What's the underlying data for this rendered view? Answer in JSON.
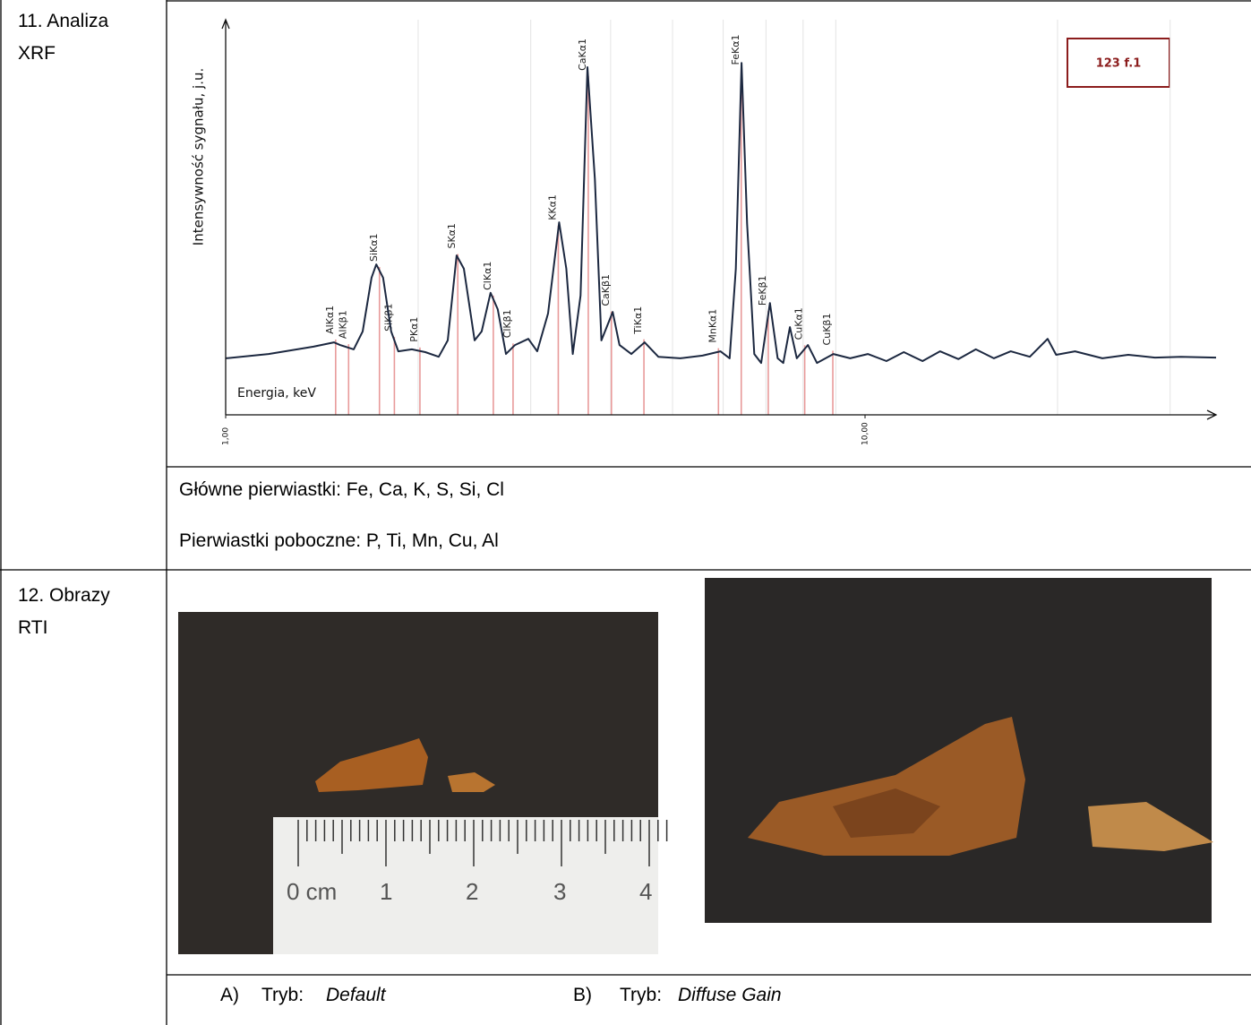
{
  "section_11": {
    "label": "11. Analiza XRF",
    "chart_data": {
      "type": "line",
      "annotation": "123 f.1",
      "x_label": "Energia, keV",
      "y_label": "Intensywność sygnału, j.u.",
      "log_x": true,
      "xlim": [
        1,
        35.4
      ],
      "ylim": [
        0,
        100
      ],
      "xticks": [
        {
          "value": 1,
          "label": "1,00"
        },
        {
          "value": 10,
          "label": "10,00"
        }
      ],
      "xgrid": [
        2,
        3,
        4,
        5,
        6,
        7,
        8,
        9,
        20,
        30
      ],
      "series": [
        {
          "color": "#1c2840",
          "x": [
            1.0,
            1.167,
            1.372,
            1.477,
            1.51,
            1.586,
            1.638,
            1.691,
            1.72,
            1.763,
            1.815,
            1.862,
            1.955,
            2.052,
            2.154,
            2.225,
            2.297,
            2.358,
            2.451,
            2.514,
            2.596,
            2.664,
            2.744,
            2.835,
            2.974,
            3.071,
            3.193,
            3.323,
            3.41,
            3.49,
            3.59,
            3.68,
            3.78,
            3.87,
            4.03,
            4.13,
            4.31,
            4.52,
            4.75,
            5.14,
            5.57,
            5.94,
            6.14,
            6.28,
            6.41,
            6.54,
            6.71,
            6.88,
            7.1,
            7.3,
            7.45,
            7.63,
            7.82,
            8.14,
            8.41,
            8.92,
            9.48,
            10.1,
            10.8,
            11.5,
            12.3,
            13.1,
            14.0,
            14.9,
            15.9,
            16.9,
            18.1,
            19.3,
            19.9,
            21.3,
            23.5,
            25.8,
            28.4,
            31.2,
            35.4
          ],
          "y": [
            14.5,
            15.6,
            17.5,
            18.6,
            17.9,
            16.8,
            21.4,
            35.2,
            38.6,
            35.2,
            21.4,
            16.3,
            16.8,
            16.1,
            14.9,
            19.1,
            40.9,
            37.5,
            19.1,
            21.4,
            31.3,
            27.1,
            15.6,
            17.9,
            19.5,
            16.3,
            26,
            49.4,
            37.5,
            15.6,
            30.6,
            89.2,
            60.5,
            19.1,
            26.4,
            17.9,
            15.6,
            18.6,
            14.9,
            14.5,
            15.2,
            16.3,
            14.5,
            37.5,
            90.3,
            49,
            15.6,
            13.3,
            28.7,
            14.5,
            13.3,
            22.5,
            14.5,
            17.9,
            13.3,
            15.6,
            14.5,
            15.6,
            13.8,
            16.1,
            13.8,
            16.3,
            14.3,
            16.8,
            14.5,
            16.3,
            14.9,
            19.5,
            15.4,
            16.3,
            14.5,
            15.4,
            14.7,
            14.9,
            14.7
          ]
        }
      ],
      "peak_color": "#e89a9a",
      "peaks": [
        {
          "label": "AlKα1",
          "energy": 1.486
        },
        {
          "label": "AlKβ1",
          "energy": 1.557
        },
        {
          "label": "SiKα1",
          "energy": 1.74
        },
        {
          "label": "SiKβ1",
          "energy": 1.836
        },
        {
          "label": "PKα1",
          "energy": 2.013
        },
        {
          "label": "SKα1",
          "energy": 2.307
        },
        {
          "label": "ClKα1",
          "energy": 2.622
        },
        {
          "label": "ClKβ1",
          "energy": 2.815
        },
        {
          "label": "KKα1",
          "energy": 3.313
        },
        {
          "label": "CaKα1",
          "energy": 3.691
        },
        {
          "label": "CaKβ1",
          "energy": 4.012
        },
        {
          "label": "TiKα1",
          "energy": 4.51
        },
        {
          "label": "MnKα1",
          "energy": 5.898
        },
        {
          "label": "FeKα1",
          "energy": 6.403
        },
        {
          "label": "FeKβ1",
          "energy": 7.057
        },
        {
          "label": "CuKα1",
          "energy": 8.047
        },
        {
          "label": "CuKβ1",
          "energy": 8.904
        }
      ]
    },
    "main_elements": "Główne pierwiastki: Fe, Ca, K, S, Si, Cl",
    "minor_elements": "Pierwiastki poboczne: P, Ti, Mn, Cu, Al"
  },
  "section_12": {
    "label": "12. Obrazy RTI",
    "ruler_labels": [
      "0 cm",
      "1",
      "2",
      "3",
      "4"
    ],
    "captions": [
      {
        "marker": "A)",
        "prefix": "Tryb:",
        "mode": "Default"
      },
      {
        "marker": "B)",
        "prefix": "Tryb:",
        "mode": "Diffuse Gain"
      }
    ]
  }
}
